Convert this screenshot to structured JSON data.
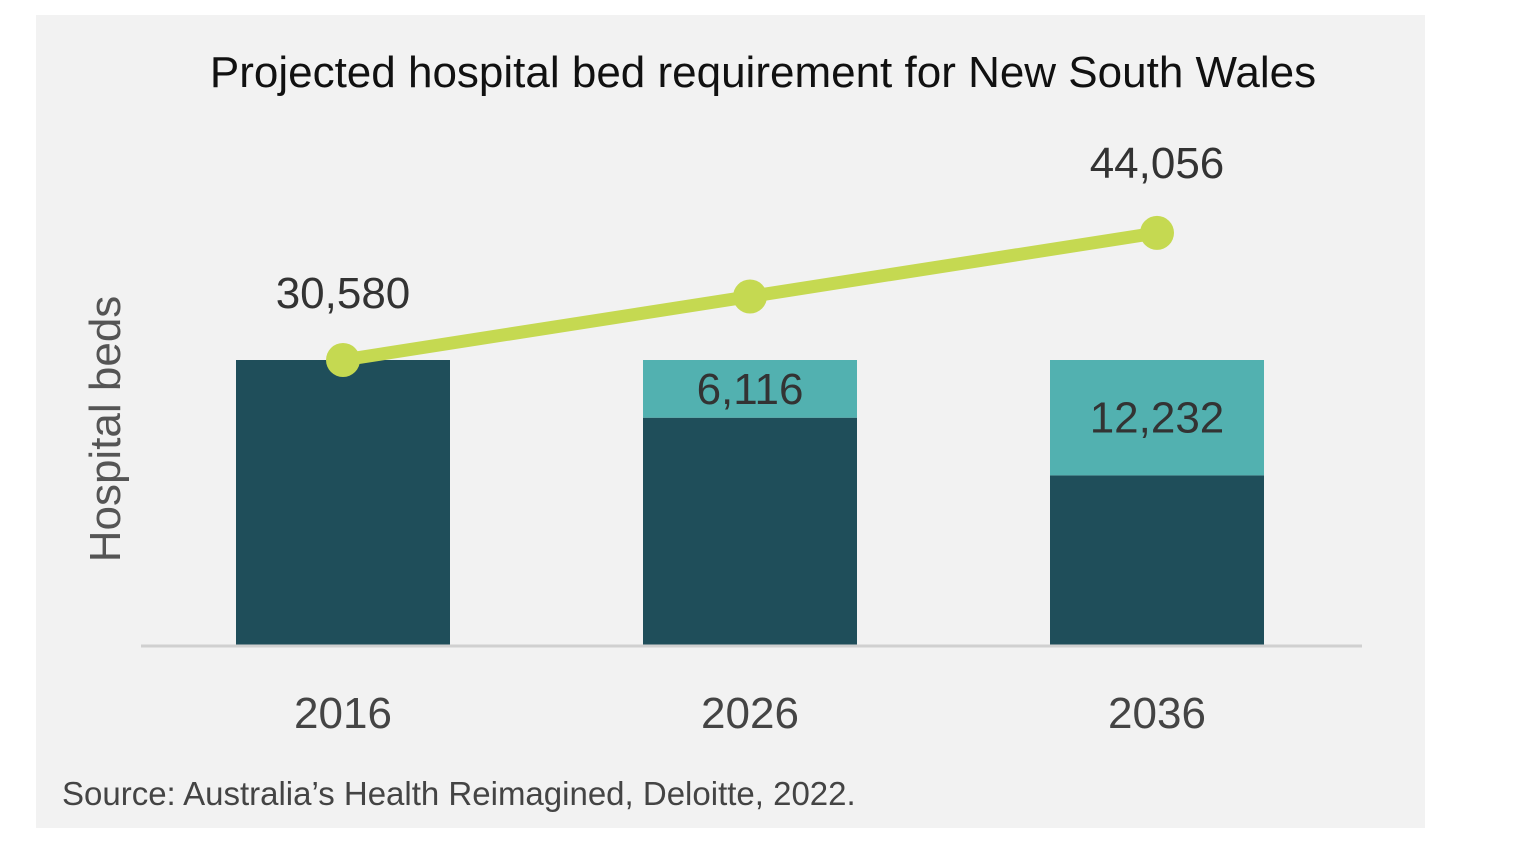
{
  "chart_data": {
    "type": "bar",
    "title": "Projected hospital bed requirement for New South Wales",
    "ylabel": "Hospital beds",
    "xlabel": "",
    "categories": [
      "2016",
      "2026",
      "2036"
    ],
    "series": [
      {
        "values": [
          30580,
          30580,
          30580
        ],
        "color": "#1f4e5a"
      },
      {
        "values": [
          0,
          6116,
          12232
        ],
        "color": "#52b1b0"
      }
    ],
    "line": {
      "values": [
        30580,
        37312,
        44056
      ],
      "color": "#c5d951"
    },
    "labels": {
      "line_first": "30,580",
      "line_last": "44,056",
      "increase_2026": "6,116",
      "increase_2036": "12,232"
    },
    "source": "Source: Australia’s Health Reimagined, Deloitte, 2022.",
    "grid": false,
    "legend": "none"
  }
}
